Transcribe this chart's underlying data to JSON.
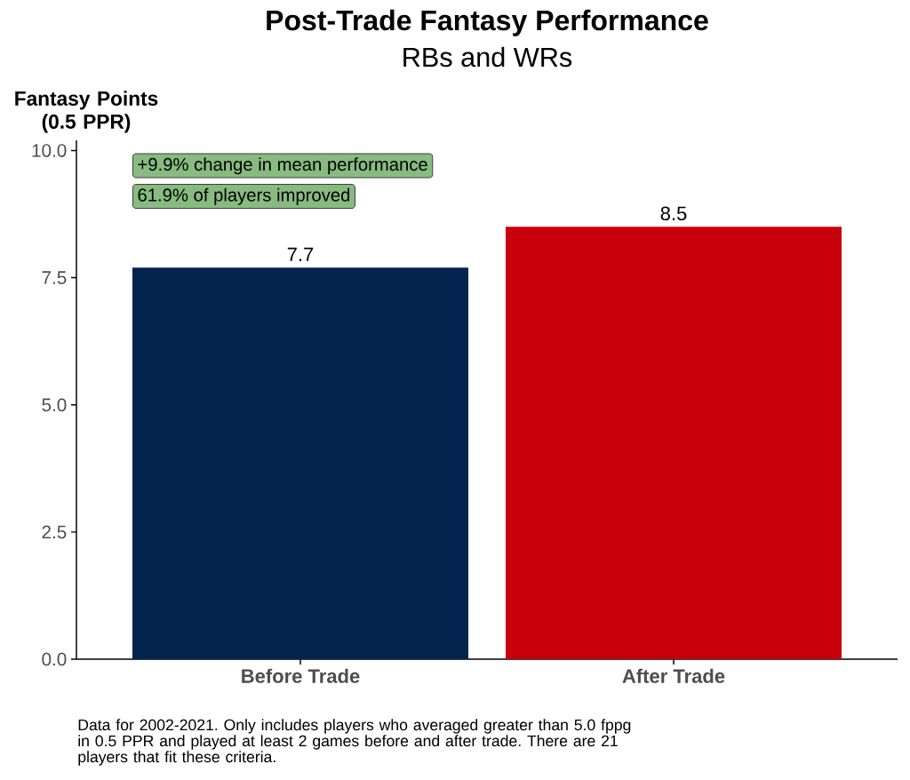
{
  "chart_data": {
    "type": "bar",
    "title": "Post-Trade Fantasy Performance",
    "subtitle": "RBs and WRs",
    "ylabel": "Fantasy Points (0.5 PPR)",
    "categories": [
      "Before Trade",
      "After Trade"
    ],
    "values": [
      7.7,
      8.5
    ],
    "colors": [
      "#04234f",
      "#c8000c"
    ],
    "ylim": [
      0,
      10.2
    ],
    "yticks": [
      {
        "value": 0,
        "label": "0.0"
      },
      2.5,
      {
        "value": 5,
        "label": "5.0"
      },
      7.5,
      {
        "value": 10,
        "label": "10.0"
      }
    ],
    "data_labels": true,
    "annotations": [
      "+9.9% change in mean performance",
      "61.9% of players improved",
      "Data for 2002-2021. Only includes players who averaged greater than 5.0 fppg in 0.5 PPR and played at least 2 games before and after trade. There are 21 players that fit these criteria."
    ]
  }
}
